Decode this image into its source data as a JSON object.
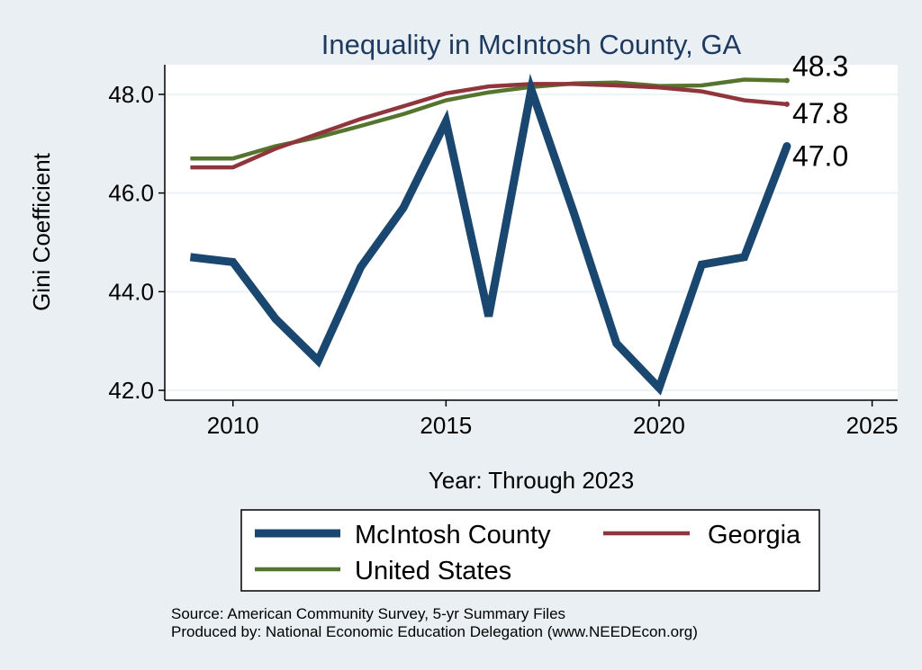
{
  "chart_data": {
    "type": "line",
    "title": "Inequality in McIntosh County, GA",
    "xlabel": "Year: Through 2023",
    "ylabel": "Gini Coefficient",
    "xlim": [
      2008.4,
      2025.6
    ],
    "ylim": [
      41.8,
      48.6
    ],
    "xticks": [
      2010,
      2015,
      2020,
      2025
    ],
    "xtick_labels": [
      "2010",
      "2015",
      "2020",
      "2025"
    ],
    "yticks": [
      42,
      44,
      46,
      48
    ],
    "ytick_labels": [
      "42.0",
      "44.0",
      "46.0",
      "48.0"
    ],
    "grid": true,
    "legend_position": "bottom",
    "series": [
      {
        "name": "McIntosh County",
        "color": "#1a476f",
        "x": [
          2009,
          2010,
          2011,
          2012,
          2013,
          2014,
          2015,
          2016,
          2017,
          2018,
          2019,
          2020,
          2021,
          2022,
          2023
        ],
        "values": [
          44.7,
          44.6,
          43.45,
          42.6,
          44.5,
          45.7,
          47.45,
          43.5,
          48.1,
          45.6,
          42.95,
          42.05,
          44.55,
          44.7,
          46.95
        ],
        "end_label": "47.0"
      },
      {
        "name": "Georgia",
        "color": "#90353b",
        "x": [
          2009,
          2010,
          2011,
          2012,
          2013,
          2014,
          2015,
          2016,
          2017,
          2018,
          2019,
          2020,
          2021,
          2022,
          2023
        ],
        "values": [
          46.52,
          46.52,
          46.9,
          47.2,
          47.5,
          47.76,
          48.02,
          48.16,
          48.21,
          48.21,
          48.18,
          48.14,
          48.06,
          47.88,
          47.8
        ],
        "end_label": "47.8"
      },
      {
        "name": "United States",
        "color": "#55752f",
        "x": [
          2009,
          2010,
          2011,
          2012,
          2013,
          2014,
          2015,
          2016,
          2017,
          2018,
          2019,
          2020,
          2021,
          2022,
          2023
        ],
        "values": [
          46.7,
          46.7,
          46.95,
          47.13,
          47.36,
          47.6,
          47.88,
          48.04,
          48.15,
          48.22,
          48.24,
          48.17,
          48.18,
          48.3,
          48.28
        ],
        "end_label": "48.3"
      }
    ]
  },
  "notes": {
    "source": "Source: American Community Survey, 5-yr Summary Files",
    "produced_by": "Produced by: National Economic Education Delegation (www.NEEDEcon.org)"
  }
}
